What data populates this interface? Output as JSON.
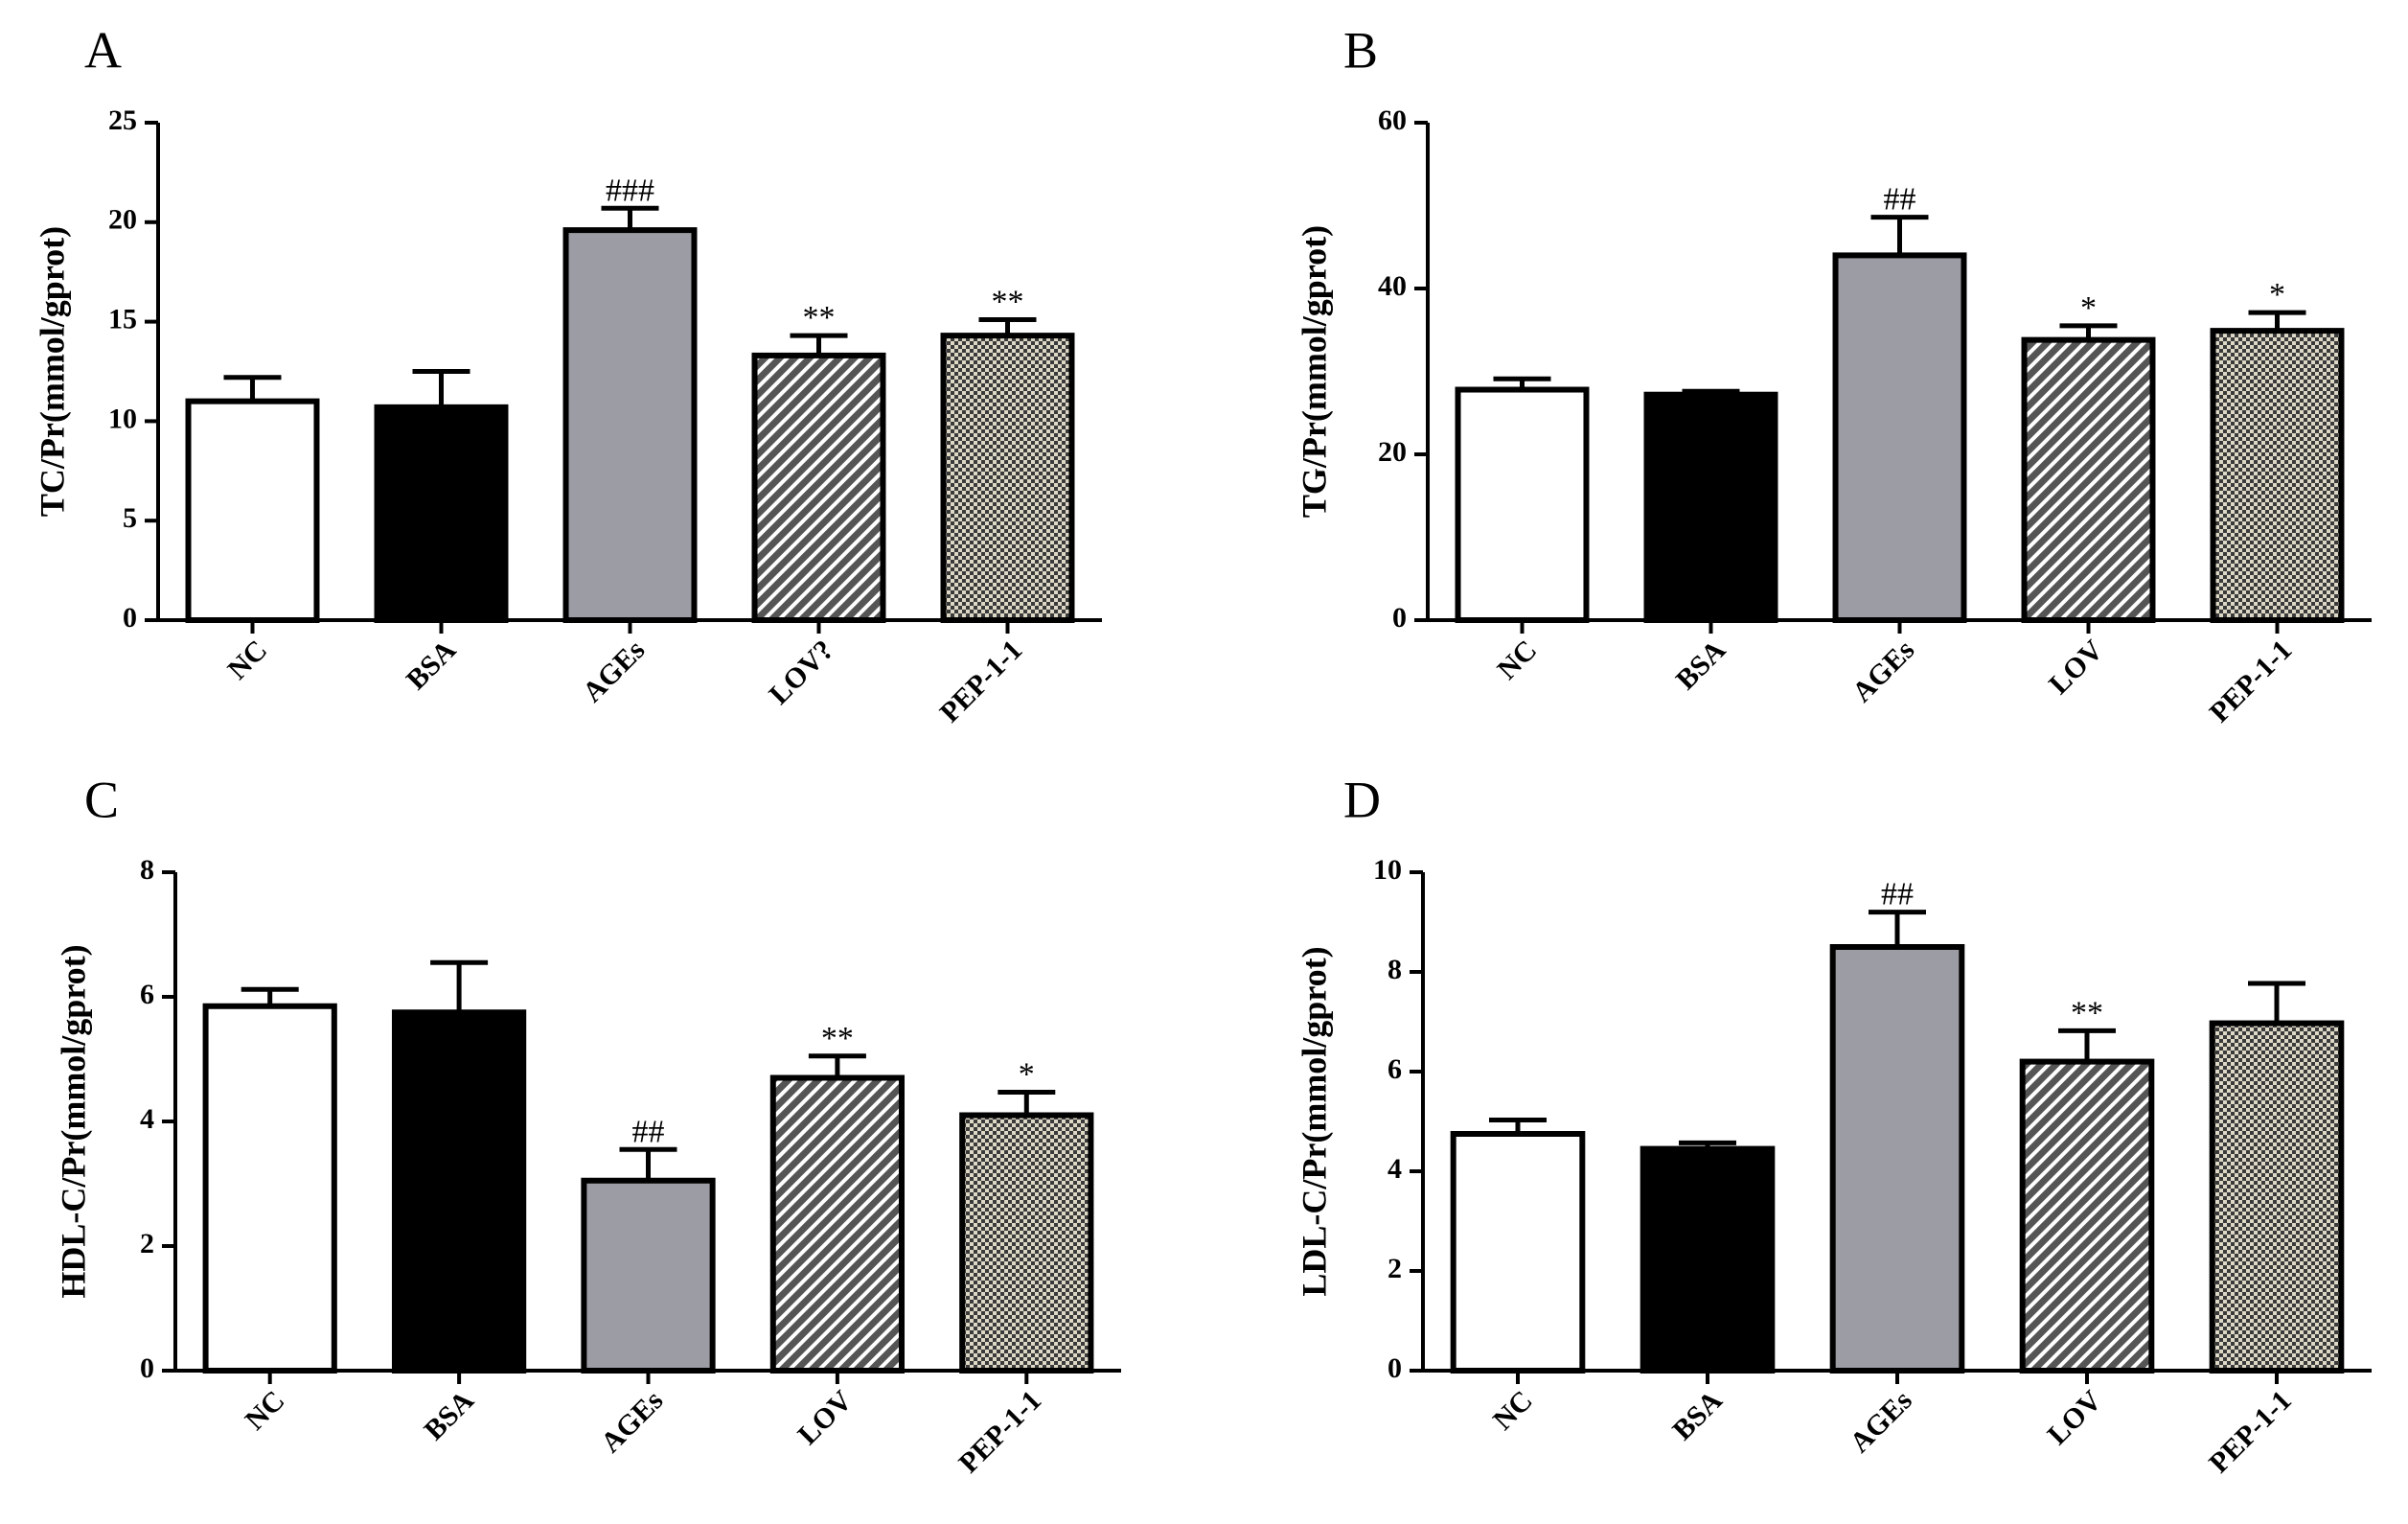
{
  "colors": {
    "background": "#ffffff",
    "axis": "#000000",
    "ages_gray": "#9c9ca4",
    "black": "#000000"
  },
  "chart_data": [
    {
      "panel": "A",
      "type": "bar",
      "ylabel": "TC/Pr(mmol/gprot)",
      "categories": [
        "NC",
        "BSA",
        "AGEs",
        "LOV?",
        "PEP-1-1"
      ],
      "values": [
        11.0,
        10.7,
        19.6,
        13.3,
        14.3
      ],
      "errors": [
        1.2,
        1.8,
        1.1,
        1.0,
        0.8
      ],
      "significance": [
        "",
        "",
        "###",
        "**",
        "**"
      ],
      "ylim": [
        0,
        25
      ],
      "yticks": [
        "0",
        "5",
        "10",
        "15",
        "20",
        "25"
      ],
      "ytick_values": [
        0,
        5,
        10,
        15,
        20,
        25
      ],
      "bar_fills": [
        "white",
        "black",
        "gray",
        "hatch",
        "checker"
      ]
    },
    {
      "panel": "B",
      "type": "bar",
      "ylabel": "TG/Pr(mmol/gprot)",
      "categories": [
        "NC",
        "BSA",
        "AGEs",
        "LOV",
        "PEP-1-1"
      ],
      "values": [
        27.8,
        27.2,
        44.0,
        33.8,
        34.9
      ],
      "errors": [
        1.3,
        0.4,
        4.6,
        1.7,
        2.2
      ],
      "significance": [
        "",
        "",
        "##",
        "*",
        "*"
      ],
      "ylim": [
        0,
        60
      ],
      "yticks": [
        "0",
        "20",
        "40",
        "60"
      ],
      "ytick_values": [
        0,
        20,
        40,
        60
      ],
      "bar_fills": [
        "white",
        "black",
        "gray",
        "hatch",
        "checker"
      ]
    },
    {
      "panel": "C",
      "type": "bar",
      "ylabel": "HDL-C/Pr(mmol/gprot)",
      "categories": [
        "NC",
        "BSA",
        "AGEs",
        "LOV",
        "PEP-1-1"
      ],
      "values": [
        5.85,
        5.75,
        3.05,
        4.7,
        4.1
      ],
      "errors": [
        0.27,
        0.8,
        0.5,
        0.35,
        0.37
      ],
      "significance": [
        "",
        "",
        "##",
        "**",
        "*"
      ],
      "ylim": [
        0,
        8
      ],
      "yticks": [
        "0",
        "2",
        "4",
        "6",
        "8"
      ],
      "ytick_values": [
        0,
        2,
        4,
        6,
        8
      ],
      "bar_fills": [
        "white",
        "black",
        "gray",
        "hatch",
        "checker"
      ]
    },
    {
      "panel": "D",
      "type": "bar",
      "ylabel": "LDL-C/Pr(mmol/gprot)",
      "categories": [
        "NC",
        "BSA",
        "AGEs",
        "LOV",
        "PEP-1-1"
      ],
      "values": [
        4.75,
        4.45,
        8.5,
        6.2,
        6.97
      ],
      "errors": [
        0.28,
        0.12,
        0.7,
        0.62,
        0.8
      ],
      "significance": [
        "",
        "",
        "##",
        "**",
        ""
      ],
      "ylim": [
        0,
        10
      ],
      "yticks": [
        "0",
        "2",
        "4",
        "6",
        "8",
        "10"
      ],
      "ytick_values": [
        0,
        2,
        4,
        6,
        8,
        10
      ],
      "bar_fills": [
        "white",
        "black",
        "gray",
        "hatch",
        "checker"
      ]
    }
  ]
}
